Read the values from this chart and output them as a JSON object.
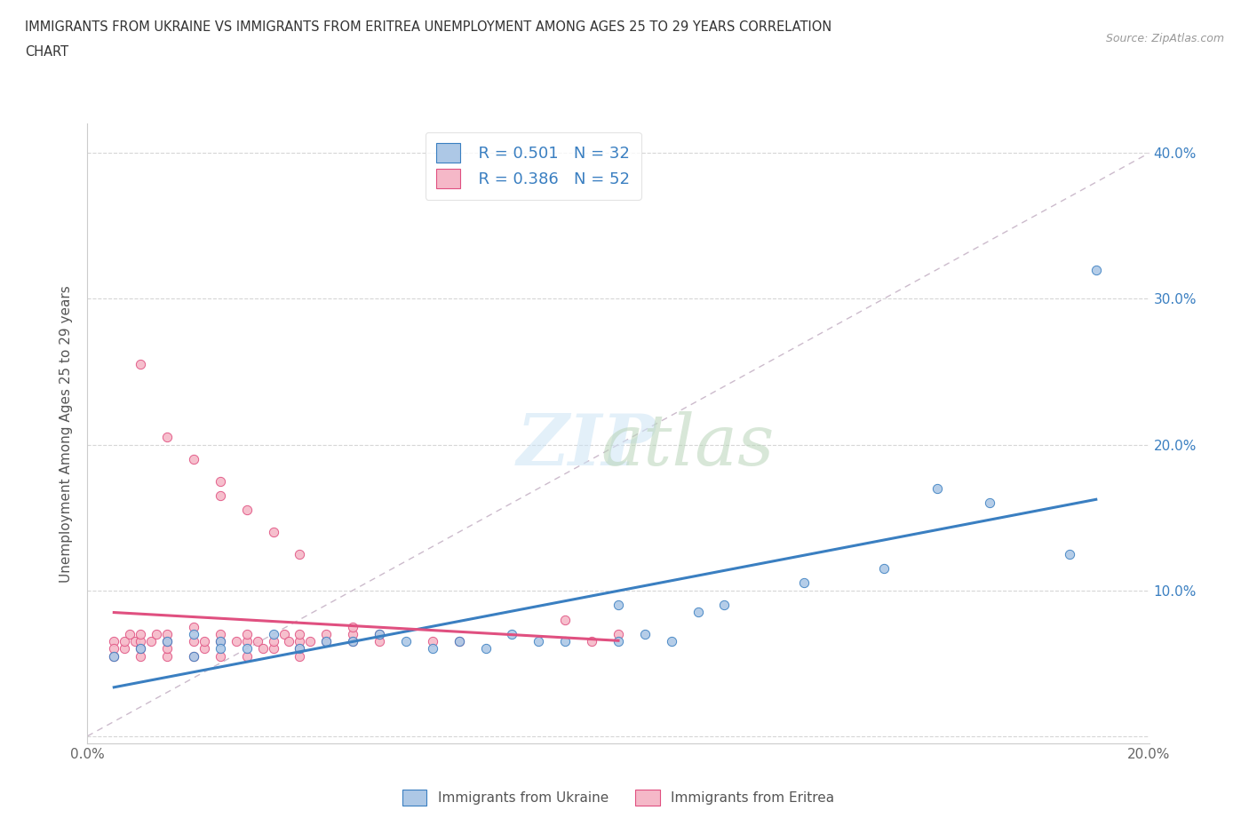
{
  "title_line1": "IMMIGRANTS FROM UKRAINE VS IMMIGRANTS FROM ERITREA UNEMPLOYMENT AMONG AGES 25 TO 29 YEARS CORRELATION",
  "title_line2": "CHART",
  "source": "Source: ZipAtlas.com",
  "ylabel": "Unemployment Among Ages 25 to 29 years",
  "xlim": [
    0.0,
    0.2
  ],
  "ylim": [
    -0.005,
    0.42
  ],
  "x_ticks": [
    0.0,
    0.05,
    0.1,
    0.15,
    0.2
  ],
  "x_tick_labels": [
    "0.0%",
    "",
    "",
    "",
    "20.0%"
  ],
  "y_ticks": [
    0.0,
    0.1,
    0.2,
    0.3,
    0.4
  ],
  "y_tick_labels": [
    "",
    "10.0%",
    "20.0%",
    "30.0%",
    "40.0%"
  ],
  "ukraine_color": "#adc8e6",
  "eritrea_color": "#f5b8c8",
  "ukraine_line_color": "#3a7fc1",
  "eritrea_line_color": "#e05080",
  "legend_R_ukraine": "R = 0.501",
  "legend_N_ukraine": "N = 32",
  "legend_R_eritrea": "R = 0.386",
  "legend_N_eritrea": "N = 52",
  "diag_color": "#ccbbcc",
  "grid_color": "#cccccc",
  "background_color": "#ffffff",
  "legend_label_ukraine": "Immigrants from Ukraine",
  "legend_label_eritrea": "Immigrants from Eritrea",
  "ukraine_x": [
    0.005,
    0.01,
    0.015,
    0.02,
    0.02,
    0.025,
    0.025,
    0.03,
    0.035,
    0.04,
    0.045,
    0.05,
    0.055,
    0.06,
    0.065,
    0.07,
    0.075,
    0.08,
    0.085,
    0.09,
    0.1,
    0.1,
    0.105,
    0.11,
    0.115,
    0.12,
    0.135,
    0.15,
    0.16,
    0.17,
    0.185,
    0.19
  ],
  "ukraine_y": [
    0.055,
    0.06,
    0.065,
    0.055,
    0.07,
    0.065,
    0.06,
    0.06,
    0.07,
    0.06,
    0.065,
    0.065,
    0.07,
    0.065,
    0.06,
    0.065,
    0.06,
    0.07,
    0.065,
    0.065,
    0.065,
    0.09,
    0.07,
    0.065,
    0.085,
    0.09,
    0.105,
    0.115,
    0.17,
    0.16,
    0.125,
    0.32
  ],
  "eritrea_x": [
    0.005,
    0.005,
    0.005,
    0.007,
    0.007,
    0.008,
    0.009,
    0.01,
    0.01,
    0.01,
    0.01,
    0.012,
    0.013,
    0.015,
    0.015,
    0.015,
    0.015,
    0.02,
    0.02,
    0.02,
    0.022,
    0.022,
    0.025,
    0.025,
    0.025,
    0.028,
    0.03,
    0.03,
    0.03,
    0.032,
    0.033,
    0.035,
    0.035,
    0.037,
    0.038,
    0.04,
    0.04,
    0.04,
    0.04,
    0.042,
    0.045,
    0.045,
    0.05,
    0.05,
    0.05,
    0.055,
    0.055,
    0.065,
    0.07,
    0.09,
    0.095,
    0.1
  ],
  "eritrea_y": [
    0.055,
    0.065,
    0.06,
    0.06,
    0.065,
    0.07,
    0.065,
    0.055,
    0.06,
    0.065,
    0.07,
    0.065,
    0.07,
    0.055,
    0.06,
    0.065,
    0.07,
    0.055,
    0.065,
    0.075,
    0.06,
    0.065,
    0.055,
    0.065,
    0.07,
    0.065,
    0.055,
    0.065,
    0.07,
    0.065,
    0.06,
    0.06,
    0.065,
    0.07,
    0.065,
    0.06,
    0.065,
    0.07,
    0.055,
    0.065,
    0.065,
    0.07,
    0.065,
    0.07,
    0.075,
    0.065,
    0.07,
    0.065,
    0.065,
    0.08,
    0.065,
    0.07
  ],
  "eritrea_outlier_x": [
    0.01,
    0.015,
    0.02,
    0.025,
    0.025,
    0.03,
    0.035,
    0.04
  ],
  "eritrea_outlier_y": [
    0.255,
    0.205,
    0.19,
    0.175,
    0.165,
    0.155,
    0.14,
    0.125
  ]
}
